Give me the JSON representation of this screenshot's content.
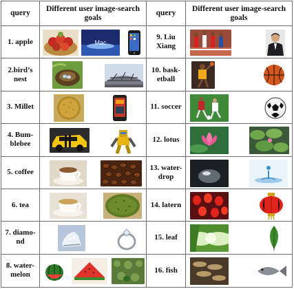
{
  "headers": {
    "query_left": "query",
    "goals_left": "Different user image-search goals",
    "query_right": "query",
    "goals_right": "Different user image-search goals"
  },
  "rows": [
    {
      "left_query": "1. apple",
      "right_query": "9. Liu Xiang"
    },
    {
      "left_query": "2.bird’s nest",
      "right_query": "10. bask-etball"
    },
    {
      "left_query": "3. Millet",
      "right_query": "11. soccer"
    },
    {
      "left_query": "4. Bum-blebee",
      "right_query": "12. lotus"
    },
    {
      "left_query": "5. coffee",
      "right_query": "13. water-drop"
    },
    {
      "left_query": "6. tea",
      "right_query": "14. latern"
    },
    {
      "left_query": "7. diamo-nd",
      "right_query": "15. leaf"
    },
    {
      "left_query": "8. water-melon",
      "right_query": "16. fish"
    }
  ],
  "image_labels": {
    "apple_mac_text": "Mac"
  }
}
